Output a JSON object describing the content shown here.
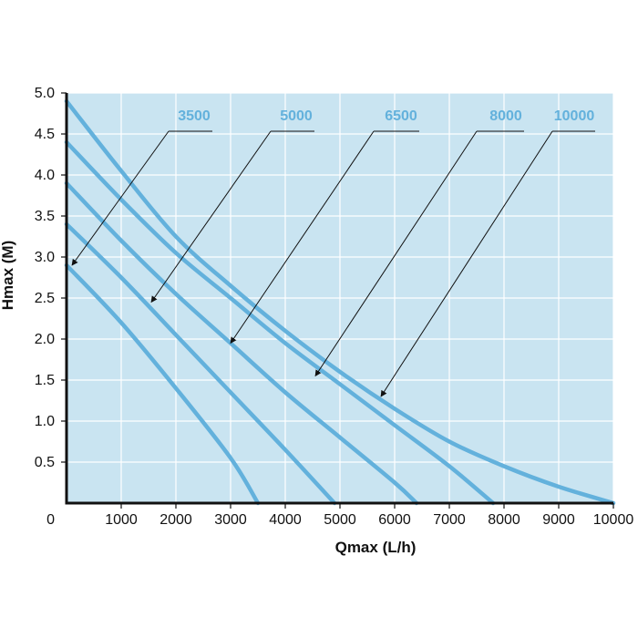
{
  "chart_data": {
    "type": "line",
    "xlabel": "Qmax (L/h)",
    "ylabel": "Hmax (M)",
    "xlim": [
      0,
      10000
    ],
    "ylim": [
      0,
      5.0
    ],
    "x_ticks": [
      "1000",
      "2000",
      "3000",
      "4000",
      "5000",
      "6000",
      "7000",
      "8000",
      "9000",
      "10000"
    ],
    "y_ticks": [
      "0.5",
      "1.0",
      "1.5",
      "2.0",
      "2.5",
      "3.0",
      "3.5",
      "4.0",
      "4.5",
      "5.0"
    ],
    "origin_label": "0",
    "grid": true,
    "series": [
      {
        "name": "3500",
        "x": [
          0,
          1000,
          2000,
          3000,
          3500
        ],
        "y": [
          2.9,
          2.2,
          1.4,
          0.55,
          0
        ]
      },
      {
        "name": "5000",
        "x": [
          0,
          1000,
          2000,
          3000,
          4000,
          4900
        ],
        "y": [
          3.4,
          2.75,
          2.05,
          1.35,
          0.65,
          0
        ]
      },
      {
        "name": "6500",
        "x": [
          0,
          1000,
          2000,
          3000,
          4000,
          5000,
          6000,
          6400
        ],
        "y": [
          3.9,
          3.2,
          2.55,
          1.95,
          1.35,
          0.8,
          0.25,
          0
        ]
      },
      {
        "name": "8000",
        "x": [
          0,
          1000,
          2000,
          3000,
          4000,
          5000,
          6000,
          7000,
          7800
        ],
        "y": [
          4.4,
          3.7,
          3.05,
          2.5,
          1.95,
          1.45,
          0.95,
          0.45,
          0
        ]
      },
      {
        "name": "10000",
        "x": [
          0,
          1000,
          2000,
          3000,
          4000,
          5000,
          6000,
          7000,
          8000,
          9000,
          10000
        ],
        "y": [
          4.9,
          4.05,
          3.25,
          2.65,
          2.1,
          1.6,
          1.15,
          0.75,
          0.45,
          0.2,
          0
        ]
      }
    ],
    "annotation_targets": [
      {
        "series": "3500",
        "x": 100,
        "y": 2.9
      },
      {
        "series": "5000",
        "x": 1550,
        "y": 2.45
      },
      {
        "series": "6500",
        "x": 3000,
        "y": 1.95
      },
      {
        "series": "8000",
        "x": 4550,
        "y": 1.55
      },
      {
        "series": "10000",
        "x": 5750,
        "y": 1.3
      }
    ],
    "colors": {
      "plot_background": "#c9e4f1",
      "grid": "#ffffff",
      "series_line": "#63b1dc",
      "series_label": "#63b1dc",
      "axis": "#111111",
      "annotation": "#111111"
    }
  }
}
